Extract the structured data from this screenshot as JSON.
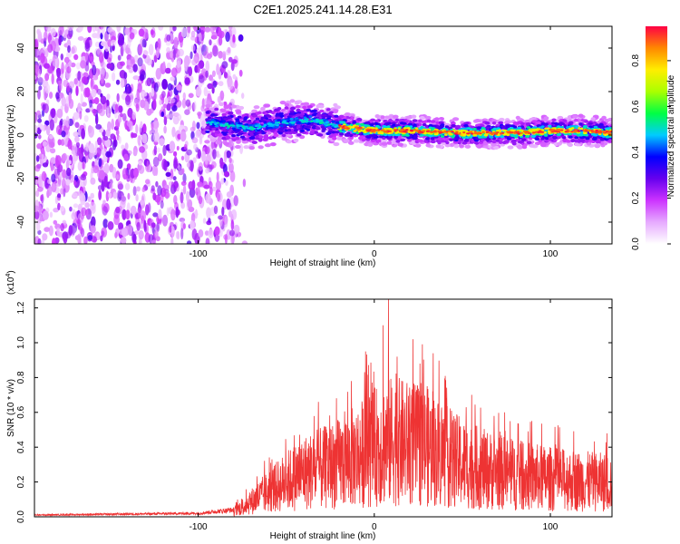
{
  "chart_data": [
    {
      "type": "heatmap",
      "title": "C2E1.2025.241.14.28.E31",
      "xlabel": "Height of straight line (km)",
      "ylabel": "Frequency (Hz)",
      "xlim": [
        -193,
        135
      ],
      "ylim": [
        -50,
        50
      ],
      "xticks": [
        -100,
        0,
        100
      ],
      "xtick_labels": [
        "-100",
        "0",
        "100"
      ],
      "yticks": [
        -40,
        -20,
        0,
        20,
        40
      ],
      "ytick_labels": [
        "-40",
        "-20",
        "0",
        "20",
        "40"
      ],
      "noise_region_x": [
        -193,
        -78
      ],
      "signal_start_x": -95,
      "signal_center_freq": [
        {
          "x": -95,
          "f": 6
        },
        {
          "x": -70,
          "f": 3
        },
        {
          "x": -50,
          "f": 6
        },
        {
          "x": -35,
          "f": 7
        },
        {
          "x": -20,
          "f": 4
        },
        {
          "x": 0,
          "f": 2
        },
        {
          "x": 20,
          "f": 2
        },
        {
          "x": 50,
          "f": 1
        },
        {
          "x": 80,
          "f": 1
        },
        {
          "x": 100,
          "f": 2
        },
        {
          "x": 120,
          "f": 2
        },
        {
          "x": 135,
          "f": 1
        }
      ],
      "colorbar": {
        "label": "Normalized spectral amplitude",
        "range": [
          0.0,
          0.95
        ],
        "ticks": [
          0.0,
          0.2,
          0.4,
          0.6,
          0.8
        ],
        "tick_labels": [
          "0.0",
          "0.2",
          "0.4",
          "0.6",
          "0.8"
        ],
        "colors": [
          "#ffffff",
          "#e6aaff",
          "#cc33ff",
          "#6600ee",
          "#0000ff",
          "#00ccff",
          "#00ff44",
          "#aaff00",
          "#ffee00",
          "#ff8800",
          "#ff0044"
        ]
      }
    },
    {
      "type": "line",
      "title": "",
      "xlabel": "Height of straight line (km)",
      "ylabel": "SNR (10 * v/v)",
      "scale_label": "(x10",
      "scale_exponent": "4",
      "scale_close": ")",
      "xlim": [
        -193,
        135
      ],
      "ylim": [
        0,
        1.25
      ],
      "xticks": [
        -100,
        0,
        100
      ],
      "xtick_labels": [
        "-100",
        "0",
        "100"
      ],
      "yticks": [
        0.0,
        0.2,
        0.4,
        0.6,
        0.8,
        1.0,
        1.2
      ],
      "ytick_labels": [
        "0.0",
        "0.2",
        "0.4",
        "0.6",
        "0.8",
        "1.0",
        "1.2"
      ],
      "series": [
        {
          "name": "SNR",
          "color": "#ee3333",
          "envelope": [
            {
              "x": -193,
              "v": 0.01
            },
            {
              "x": -100,
              "v": 0.02
            },
            {
              "x": -80,
              "v": 0.04
            },
            {
              "x": -70,
              "v": 0.12
            },
            {
              "x": -60,
              "v": 0.2
            },
            {
              "x": -50,
              "v": 0.28
            },
            {
              "x": -40,
              "v": 0.35
            },
            {
              "x": -30,
              "v": 0.38
            },
            {
              "x": -20,
              "v": 0.42
            },
            {
              "x": -10,
              "v": 0.48
            },
            {
              "x": 0,
              "v": 0.55
            },
            {
              "x": 10,
              "v": 0.6
            },
            {
              "x": 20,
              "v": 0.58
            },
            {
              "x": 30,
              "v": 0.55
            },
            {
              "x": 40,
              "v": 0.48
            },
            {
              "x": 50,
              "v": 0.42
            },
            {
              "x": 60,
              "v": 0.38
            },
            {
              "x": 80,
              "v": 0.33
            },
            {
              "x": 100,
              "v": 0.3
            },
            {
              "x": 120,
              "v": 0.28
            },
            {
              "x": 135,
              "v": 0.27
            }
          ],
          "peaks": [
            {
              "x": 8,
              "v": 1.25
            },
            {
              "x": 5,
              "v": 1.1
            },
            {
              "x": 22,
              "v": 1.02
            },
            {
              "x": -5,
              "v": 0.95
            },
            {
              "x": 13,
              "v": 0.92
            },
            {
              "x": 26,
              "v": 0.88
            },
            {
              "x": -13,
              "v": 0.78
            },
            {
              "x": 30,
              "v": 0.75
            }
          ]
        }
      ]
    }
  ]
}
